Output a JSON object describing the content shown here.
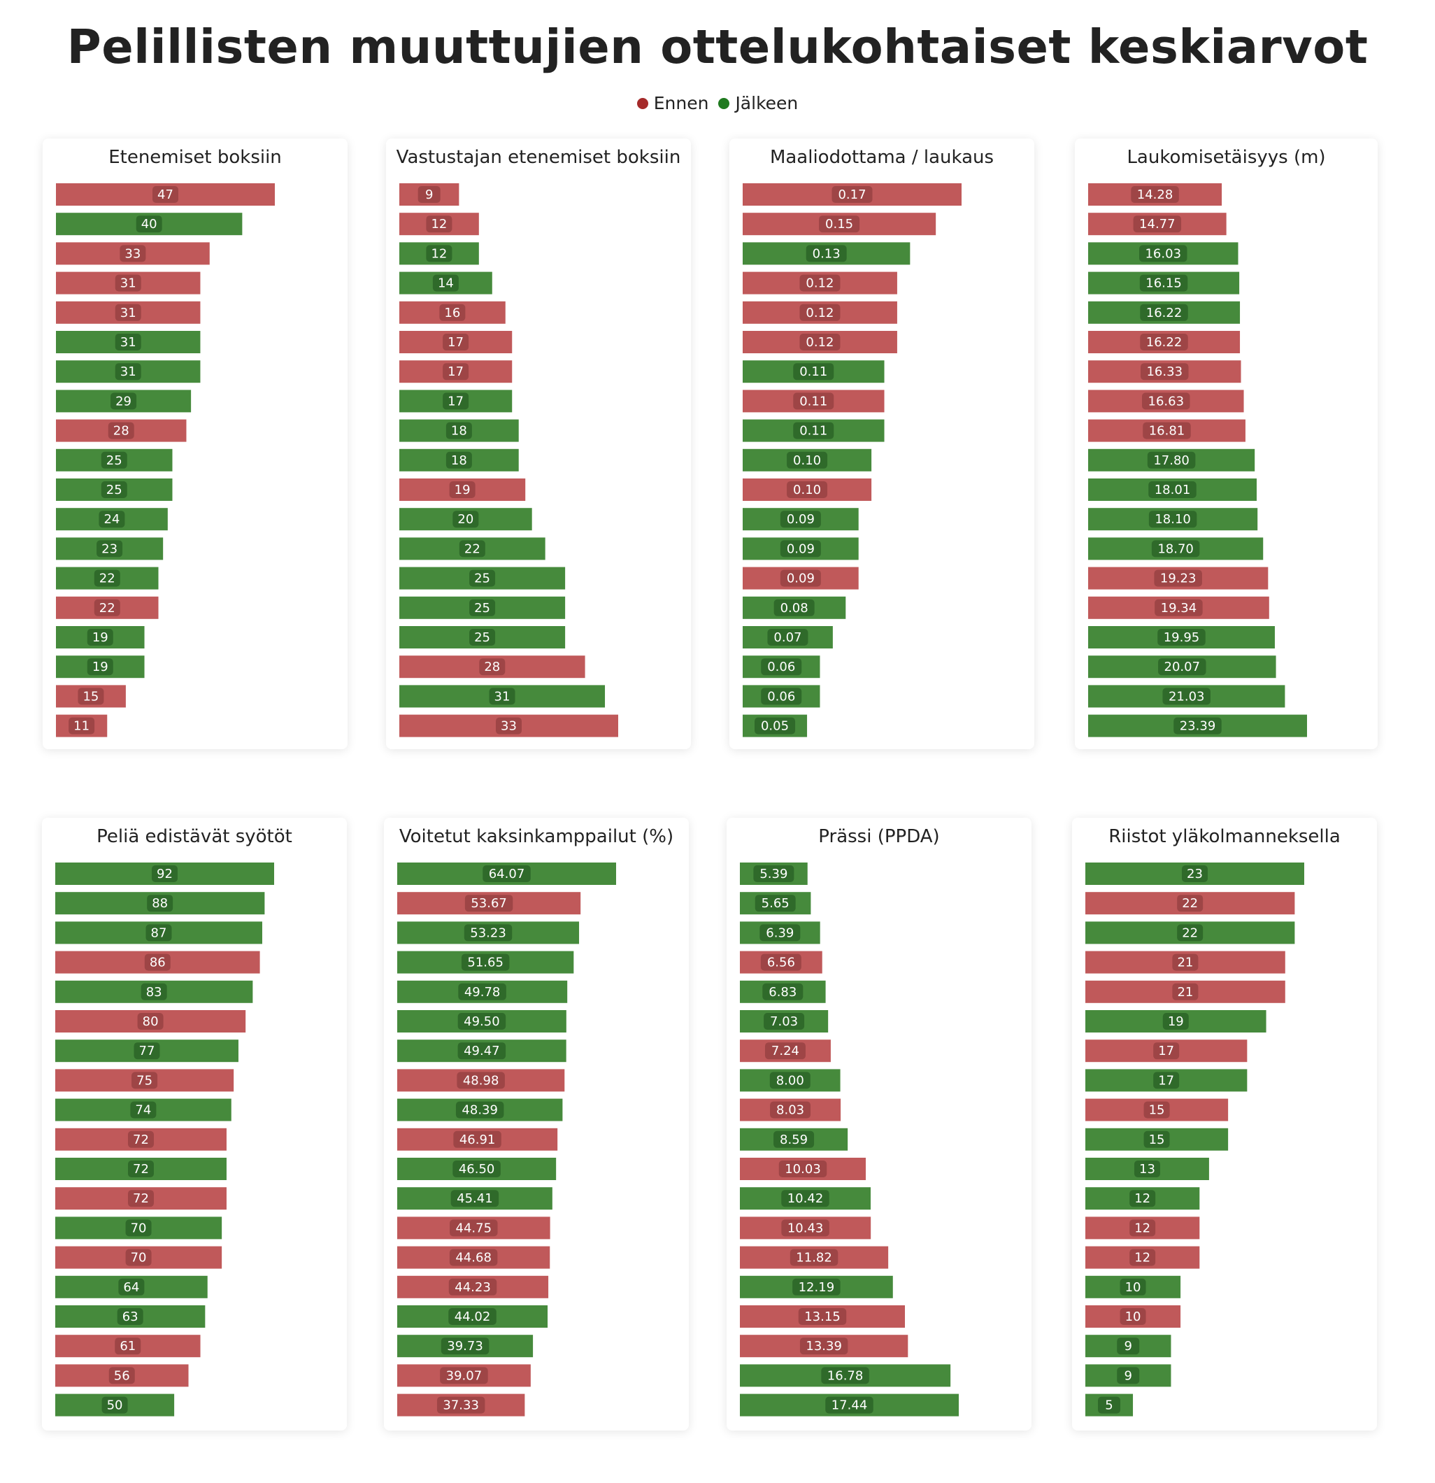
{
  "title": "Pelillisten muuttujien ottelukohtaiset keskiarvot",
  "legend": [
    {
      "label": "Ennen",
      "color": "#c0595a",
      "dot": "#a52a2a"
    },
    {
      "label": "Jälkeen",
      "color": "#468a3c",
      "dot": "#1f7a1f"
    }
  ],
  "chart_data": [
    {
      "type": "bar",
      "title": "Etenemiset boksiin",
      "xlim": [
        0,
        47
      ],
      "values": [
        47,
        40,
        33,
        31,
        31,
        31,
        31,
        29,
        28,
        25,
        25,
        24,
        23,
        22,
        22,
        19,
        19,
        15,
        11
      ],
      "labels": [
        "47",
        "40",
        "33",
        "31",
        "31",
        "31",
        "31",
        "29",
        "28",
        "25",
        "25",
        "24",
        "23",
        "22",
        "22",
        "19",
        "19",
        "15",
        "11"
      ],
      "groups": [
        "Ennen",
        "Jälkeen",
        "Ennen",
        "Ennen",
        "Ennen",
        "Jälkeen",
        "Jälkeen",
        "Jälkeen",
        "Ennen",
        "Jälkeen",
        "Jälkeen",
        "Jälkeen",
        "Jälkeen",
        "Jälkeen",
        "Ennen",
        "Jälkeen",
        "Jälkeen",
        "Ennen",
        "Ennen"
      ]
    },
    {
      "type": "bar",
      "title": "Vastustajan etenemiset boksiin",
      "xlim": [
        0,
        33
      ],
      "values": [
        9,
        12,
        12,
        14,
        16,
        17,
        17,
        17,
        18,
        18,
        19,
        20,
        22,
        25,
        25,
        25,
        28,
        31,
        33
      ],
      "labels": [
        "9",
        "12",
        "12",
        "14",
        "16",
        "17",
        "17",
        "17",
        "18",
        "18",
        "19",
        "20",
        "22",
        "25",
        "25",
        "25",
        "28",
        "31",
        "33"
      ],
      "groups": [
        "Ennen",
        "Ennen",
        "Jälkeen",
        "Jälkeen",
        "Ennen",
        "Ennen",
        "Ennen",
        "Jälkeen",
        "Jälkeen",
        "Jälkeen",
        "Ennen",
        "Jälkeen",
        "Jälkeen",
        "Jälkeen",
        "Jälkeen",
        "Jälkeen",
        "Ennen",
        "Jälkeen",
        "Ennen"
      ]
    },
    {
      "type": "bar",
      "title": "Maaliodottama / laukaus",
      "xlim": [
        0,
        0.17
      ],
      "values": [
        0.17,
        0.15,
        0.13,
        0.12,
        0.12,
        0.12,
        0.11,
        0.11,
        0.11,
        0.1,
        0.1,
        0.09,
        0.09,
        0.09,
        0.08,
        0.07,
        0.06,
        0.06,
        0.05
      ],
      "labels": [
        "0.17",
        "0.15",
        "0.13",
        "0.12",
        "0.12",
        "0.12",
        "0.11",
        "0.11",
        "0.11",
        "0.10",
        "0.10",
        "0.09",
        "0.09",
        "0.09",
        "0.08",
        "0.07",
        "0.06",
        "0.06",
        "0.05"
      ],
      "groups": [
        "Ennen",
        "Ennen",
        "Jälkeen",
        "Ennen",
        "Ennen",
        "Ennen",
        "Jälkeen",
        "Ennen",
        "Jälkeen",
        "Jälkeen",
        "Ennen",
        "Jälkeen",
        "Jälkeen",
        "Ennen",
        "Jälkeen",
        "Jälkeen",
        "Jälkeen",
        "Jälkeen",
        "Jälkeen"
      ]
    },
    {
      "type": "bar",
      "title": "Laukomisetäisyys (m)",
      "xlim": [
        0,
        23.39
      ],
      "values": [
        14.28,
        14.77,
        16.03,
        16.15,
        16.22,
        16.22,
        16.33,
        16.63,
        16.81,
        17.8,
        18.01,
        18.1,
        18.7,
        19.23,
        19.34,
        19.95,
        20.07,
        21.03,
        23.39
      ],
      "labels": [
        "14.28",
        "14.77",
        "16.03",
        "16.15",
        "16.22",
        "16.22",
        "16.33",
        "16.63",
        "16.81",
        "17.80",
        "18.01",
        "18.10",
        "18.70",
        "19.23",
        "19.34",
        "19.95",
        "20.07",
        "21.03",
        "23.39"
      ],
      "groups": [
        "Ennen",
        "Ennen",
        "Jälkeen",
        "Jälkeen",
        "Jälkeen",
        "Ennen",
        "Ennen",
        "Ennen",
        "Ennen",
        "Jälkeen",
        "Jälkeen",
        "Jälkeen",
        "Jälkeen",
        "Ennen",
        "Ennen",
        "Jälkeen",
        "Jälkeen",
        "Jälkeen",
        "Jälkeen"
      ]
    },
    {
      "type": "bar",
      "title": "Peliä edistävät syötöt",
      "xlim": [
        0,
        92
      ],
      "values": [
        92,
        88,
        87,
        86,
        83,
        80,
        77,
        75,
        74,
        72,
        72,
        72,
        70,
        70,
        64,
        63,
        61,
        56,
        50
      ],
      "labels": [
        "92",
        "88",
        "87",
        "86",
        "83",
        "80",
        "77",
        "75",
        "74",
        "72",
        "72",
        "72",
        "70",
        "70",
        "64",
        "63",
        "61",
        "56",
        "50"
      ],
      "groups": [
        "Jälkeen",
        "Jälkeen",
        "Jälkeen",
        "Ennen",
        "Jälkeen",
        "Ennen",
        "Jälkeen",
        "Ennen",
        "Jälkeen",
        "Ennen",
        "Jälkeen",
        "Ennen",
        "Jälkeen",
        "Ennen",
        "Jälkeen",
        "Jälkeen",
        "Ennen",
        "Ennen",
        "Jälkeen"
      ]
    },
    {
      "type": "bar",
      "title": "Voitetut kaksinkamppailut (%)",
      "xlim": [
        0,
        64.07
      ],
      "values": [
        64.07,
        53.67,
        53.23,
        51.65,
        49.78,
        49.5,
        49.47,
        48.98,
        48.39,
        46.91,
        46.5,
        45.41,
        44.75,
        44.68,
        44.23,
        44.02,
        39.73,
        39.07,
        37.33
      ],
      "labels": [
        "64.07",
        "53.67",
        "53.23",
        "51.65",
        "49.78",
        "49.50",
        "49.47",
        "48.98",
        "48.39",
        "46.91",
        "46.50",
        "45.41",
        "44.75",
        "44.68",
        "44.23",
        "44.02",
        "39.73",
        "39.07",
        "37.33"
      ],
      "groups": [
        "Jälkeen",
        "Ennen",
        "Jälkeen",
        "Jälkeen",
        "Jälkeen",
        "Jälkeen",
        "Jälkeen",
        "Ennen",
        "Jälkeen",
        "Ennen",
        "Jälkeen",
        "Jälkeen",
        "Ennen",
        "Ennen",
        "Ennen",
        "Jälkeen",
        "Jälkeen",
        "Ennen",
        "Ennen"
      ]
    },
    {
      "type": "bar",
      "title": "Prässi (PPDA)",
      "xlim": [
        0,
        17.44
      ],
      "values": [
        5.39,
        5.65,
        6.39,
        6.56,
        6.83,
        7.03,
        7.24,
        8.0,
        8.03,
        8.59,
        10.03,
        10.42,
        10.43,
        11.82,
        12.19,
        13.15,
        13.39,
        16.78,
        17.44
      ],
      "labels": [
        "5.39",
        "5.65",
        "6.39",
        "6.56",
        "6.83",
        "7.03",
        "7.24",
        "8.00",
        "8.03",
        "8.59",
        "10.03",
        "10.42",
        "10.43",
        "11.82",
        "12.19",
        "13.15",
        "13.39",
        "16.78",
        "17.44"
      ],
      "groups": [
        "Jälkeen",
        "Jälkeen",
        "Jälkeen",
        "Ennen",
        "Jälkeen",
        "Jälkeen",
        "Ennen",
        "Jälkeen",
        "Ennen",
        "Jälkeen",
        "Ennen",
        "Jälkeen",
        "Ennen",
        "Ennen",
        "Jälkeen",
        "Ennen",
        "Ennen",
        "Jälkeen",
        "Jälkeen"
      ]
    },
    {
      "type": "bar",
      "title": "Riistot yläkolmanneksella",
      "xlim": [
        0,
        23
      ],
      "values": [
        23,
        22,
        22,
        21,
        21,
        19,
        17,
        17,
        15,
        15,
        13,
        12,
        12,
        12,
        10,
        10,
        9,
        9,
        5
      ],
      "labels": [
        "23",
        "22",
        "22",
        "21",
        "21",
        "19",
        "17",
        "17",
        "15",
        "15",
        "13",
        "12",
        "12",
        "12",
        "10",
        "10",
        "9",
        "9",
        "5"
      ],
      "groups": [
        "Jälkeen",
        "Ennen",
        "Jälkeen",
        "Ennen",
        "Ennen",
        "Jälkeen",
        "Ennen",
        "Jälkeen",
        "Ennen",
        "Jälkeen",
        "Jälkeen",
        "Jälkeen",
        "Ennen",
        "Ennen",
        "Jälkeen",
        "Ennen",
        "Jälkeen",
        "Jälkeen",
        "Jälkeen"
      ]
    }
  ]
}
